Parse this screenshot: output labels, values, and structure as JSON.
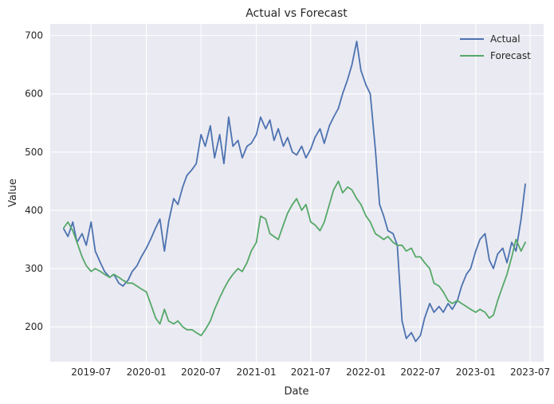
{
  "chart_data": {
    "type": "line",
    "title": "Actual vs Forecast",
    "xlabel": "Date",
    "ylabel": "Value",
    "x_axis": {
      "ticks": [
        "2019-07",
        "2020-01",
        "2020-07",
        "2021-01",
        "2021-07",
        "2022-01",
        "2022-07",
        "2023-01",
        "2023-07"
      ],
      "range": [
        "2019-02-15",
        "2023-08-15"
      ]
    },
    "y_axis": {
      "ticks": [
        200,
        300,
        400,
        500,
        600,
        700
      ],
      "ylim": [
        140,
        720
      ]
    },
    "grid": true,
    "legend_position": "top-right",
    "series": [
      {
        "name": "Actual",
        "color": "#4C72B0",
        "x": [
          "2019-04-01",
          "2019-04-15",
          "2019-05-01",
          "2019-05-15",
          "2019-06-01",
          "2019-06-15",
          "2019-07-01",
          "2019-07-15",
          "2019-08-01",
          "2019-08-15",
          "2019-09-01",
          "2019-09-15",
          "2019-10-01",
          "2019-10-15",
          "2019-11-01",
          "2019-11-15",
          "2019-12-01",
          "2019-12-15",
          "2020-01-01",
          "2020-01-15",
          "2020-02-01",
          "2020-02-15",
          "2020-03-01",
          "2020-03-15",
          "2020-04-01",
          "2020-04-15",
          "2020-05-01",
          "2020-05-15",
          "2020-06-01",
          "2020-06-15",
          "2020-07-01",
          "2020-07-15",
          "2020-08-01",
          "2020-08-15",
          "2020-09-01",
          "2020-09-15",
          "2020-10-01",
          "2020-10-15",
          "2020-11-01",
          "2020-11-15",
          "2020-12-01",
          "2020-12-15",
          "2021-01-01",
          "2021-01-15",
          "2021-02-01",
          "2021-02-15",
          "2021-03-01",
          "2021-03-15",
          "2021-04-01",
          "2021-04-15",
          "2021-05-01",
          "2021-05-15",
          "2021-06-01",
          "2021-06-15",
          "2021-07-01",
          "2021-07-15",
          "2021-08-01",
          "2021-08-15",
          "2021-09-01",
          "2021-09-15",
          "2021-10-01",
          "2021-10-15",
          "2021-11-01",
          "2021-11-15",
          "2021-12-01",
          "2021-12-15",
          "2022-01-01",
          "2022-01-15",
          "2022-02-01",
          "2022-02-15",
          "2022-03-01",
          "2022-03-15",
          "2022-04-01",
          "2022-04-15",
          "2022-05-01",
          "2022-05-15",
          "2022-06-01",
          "2022-06-15",
          "2022-07-01",
          "2022-07-15",
          "2022-08-01",
          "2022-08-15",
          "2022-09-01",
          "2022-09-15",
          "2022-10-01",
          "2022-10-15",
          "2022-11-01",
          "2022-11-15",
          "2022-12-01",
          "2022-12-15",
          "2023-01-01",
          "2023-01-15",
          "2023-02-01",
          "2023-02-15",
          "2023-03-01",
          "2023-03-15",
          "2023-04-01",
          "2023-04-15",
          "2023-05-01",
          "2023-05-15",
          "2023-06-01",
          "2023-06-15"
        ],
        "values": [
          368,
          355,
          380,
          345,
          360,
          340,
          380,
          330,
          310,
          295,
          285,
          290,
          275,
          270,
          280,
          295,
          305,
          320,
          335,
          350,
          370,
          385,
          330,
          380,
          420,
          410,
          440,
          460,
          470,
          480,
          530,
          510,
          545,
          490,
          530,
          480,
          560,
          510,
          520,
          490,
          510,
          515,
          530,
          560,
          540,
          555,
          520,
          540,
          510,
          525,
          500,
          495,
          510,
          490,
          505,
          525,
          540,
          515,
          545,
          560,
          575,
          600,
          625,
          650,
          690,
          640,
          615,
          600,
          505,
          410,
          390,
          365,
          360,
          340,
          210,
          180,
          190,
          175,
          185,
          215,
          240,
          225,
          235,
          225,
          240,
          230,
          245,
          270,
          290,
          300,
          330,
          350,
          360,
          315,
          300,
          325,
          335,
          310,
          345,
          330,
          385,
          445
        ]
      },
      {
        "name": "Forecast",
        "color": "#55A868",
        "x": [
          "2019-04-01",
          "2019-04-15",
          "2019-05-01",
          "2019-05-15",
          "2019-06-01",
          "2019-06-15",
          "2019-07-01",
          "2019-07-15",
          "2019-08-01",
          "2019-08-15",
          "2019-09-01",
          "2019-09-15",
          "2019-10-01",
          "2019-10-15",
          "2019-11-01",
          "2019-11-15",
          "2019-12-01",
          "2019-12-15",
          "2020-01-01",
          "2020-01-15",
          "2020-02-01",
          "2020-02-15",
          "2020-03-01",
          "2020-03-15",
          "2020-04-01",
          "2020-04-15",
          "2020-05-01",
          "2020-05-15",
          "2020-06-01",
          "2020-06-15",
          "2020-07-01",
          "2020-07-15",
          "2020-08-01",
          "2020-08-15",
          "2020-09-01",
          "2020-09-15",
          "2020-10-01",
          "2020-10-15",
          "2020-11-01",
          "2020-11-15",
          "2020-12-01",
          "2020-12-15",
          "2021-01-01",
          "2021-01-15",
          "2021-02-01",
          "2021-02-15",
          "2021-03-01",
          "2021-03-15",
          "2021-04-01",
          "2021-04-15",
          "2021-05-01",
          "2021-05-15",
          "2021-06-01",
          "2021-06-15",
          "2021-07-01",
          "2021-07-15",
          "2021-08-01",
          "2021-08-15",
          "2021-09-01",
          "2021-09-15",
          "2021-10-01",
          "2021-10-15",
          "2021-11-01",
          "2021-11-15",
          "2021-12-01",
          "2021-12-15",
          "2022-01-01",
          "2022-01-15",
          "2022-02-01",
          "2022-02-15",
          "2022-03-01",
          "2022-03-15",
          "2022-04-01",
          "2022-04-15",
          "2022-05-01",
          "2022-05-15",
          "2022-06-01",
          "2022-06-15",
          "2022-07-01",
          "2022-07-15",
          "2022-08-01",
          "2022-08-15",
          "2022-09-01",
          "2022-09-15",
          "2022-10-01",
          "2022-10-15",
          "2022-11-01",
          "2022-11-15",
          "2022-12-01",
          "2022-12-15",
          "2023-01-01",
          "2023-01-15",
          "2023-02-01",
          "2023-02-15",
          "2023-03-01",
          "2023-03-15",
          "2023-04-01",
          "2023-04-15",
          "2023-05-01",
          "2023-05-15",
          "2023-06-01",
          "2023-06-15"
        ],
        "values": [
          370,
          380,
          365,
          345,
          320,
          305,
          295,
          300,
          295,
          290,
          285,
          290,
          285,
          280,
          275,
          275,
          270,
          265,
          260,
          240,
          215,
          205,
          230,
          210,
          205,
          210,
          200,
          195,
          195,
          190,
          185,
          195,
          210,
          230,
          250,
          265,
          280,
          290,
          300,
          295,
          310,
          330,
          345,
          390,
          385,
          360,
          355,
          350,
          375,
          395,
          410,
          420,
          400,
          410,
          380,
          375,
          365,
          380,
          410,
          435,
          450,
          430,
          440,
          435,
          420,
          410,
          390,
          380,
          360,
          355,
          350,
          355,
          345,
          340,
          340,
          330,
          335,
          320,
          320,
          310,
          300,
          275,
          270,
          260,
          245,
          240,
          245,
          240,
          235,
          230,
          225,
          230,
          225,
          215,
          220,
          245,
          270,
          290,
          320,
          350,
          330,
          345
        ]
      }
    ]
  }
}
